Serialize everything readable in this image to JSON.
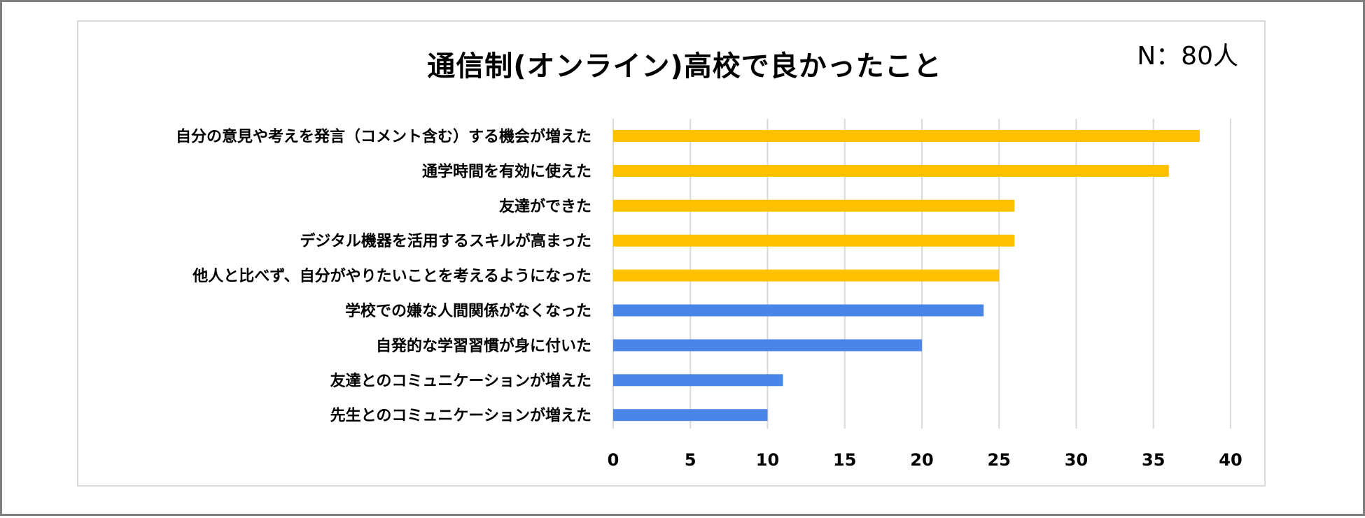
{
  "chart_data": {
    "type": "bar",
    "orientation": "horizontal",
    "title": "通信制(オンライン)高校で良かったこと",
    "note": "N：80人",
    "categories": [
      "自分の意見や考えを発言（コメント含む）する機会が増えた",
      "通学時間を有効に使えた",
      "友達ができた",
      "デジタル機器を活用するスキルが高まった",
      "他人と比べず、自分がやりたいことを考えるようになった",
      "学校での嫌な人間関係がなくなった",
      "自発的な学習習慣が身に付いた",
      "友達とのコミュニケーションが増えた",
      "先生とのコミュニケーションが増えた"
    ],
    "values": [
      38,
      36,
      26,
      26,
      25,
      24,
      20,
      11,
      10
    ],
    "highlighted": [
      true,
      true,
      true,
      true,
      true,
      false,
      false,
      false,
      false
    ],
    "xlim": [
      0,
      40
    ],
    "xticks": [
      "0",
      "5",
      "10",
      "15",
      "20",
      "25",
      "30",
      "35",
      "40"
    ],
    "xtick_values": [
      0,
      5,
      10,
      15,
      20,
      25,
      30,
      35,
      40
    ],
    "grid": true,
    "colors": {
      "highlight": "#FFC000",
      "default": "#4A86E8",
      "grid": "#D9D9D9"
    }
  }
}
